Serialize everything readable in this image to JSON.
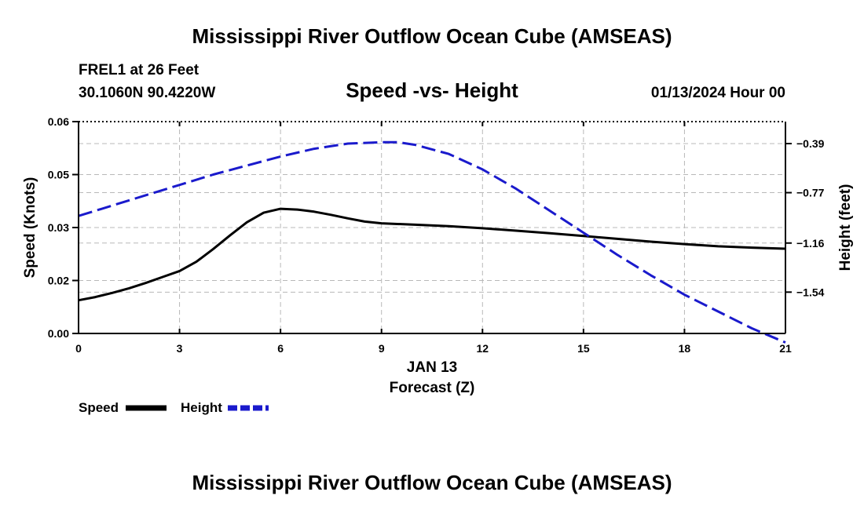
{
  "page": {
    "title": "Mississippi River Outflow Ocean Cube (AMSEAS)",
    "footer_title": "Mississippi River Outflow Ocean Cube (AMSEAS)"
  },
  "header": {
    "station": "FREL1 at 26 Feet",
    "coords": "30.1060N  90.4220W",
    "plot_title": "Speed -vs- Height",
    "datetime": "01/13/2024 Hour 00"
  },
  "chart_data": {
    "type": "line",
    "title": "Speed -vs- Height",
    "xlabel_date": "JAN 13",
    "xlabel": "Forecast (Z)",
    "ylabel": "Speed (Knots)",
    "ylabel_right": "Height (feet)",
    "xlim": [
      0,
      21
    ],
    "ylim": [
      0,
      0.06
    ],
    "ylim_right": [
      -1.86,
      -0.22
    ],
    "grid": true,
    "x_ticks": [
      0,
      3,
      6,
      9,
      12,
      15,
      18,
      21
    ],
    "x_tick_labels": [
      "0",
      "3",
      "6",
      "9",
      "12",
      "15",
      "18",
      "21"
    ],
    "y_ticks": [
      0,
      0.015,
      0.03,
      0.045,
      0.06
    ],
    "y_tick_labels": [
      "0.00",
      "0.02",
      "0.03",
      "0.05",
      "0.06"
    ],
    "y_right_ticks": [
      -0.39,
      -0.77,
      -1.16,
      -1.54
    ],
    "y_right_tick_labels": [
      "−0.39",
      "−0.77",
      "−1.16",
      "−1.54"
    ],
    "series": [
      {
        "name": "Speed",
        "axis": "left",
        "color": "#000000",
        "dash": "solid",
        "x": [
          0,
          0.5,
          1,
          1.5,
          2,
          2.5,
          3,
          3.5,
          4,
          4.5,
          5,
          5.5,
          6,
          6.5,
          7,
          7.5,
          8,
          8.5,
          9,
          10,
          11,
          12,
          13,
          14,
          15,
          16,
          17,
          18,
          19,
          20,
          21
        ],
        "values": [
          0.0094,
          0.0103,
          0.0115,
          0.0128,
          0.0143,
          0.016,
          0.0177,
          0.0203,
          0.0239,
          0.0278,
          0.0315,
          0.0342,
          0.0353,
          0.0351,
          0.0345,
          0.0336,
          0.0326,
          0.0317,
          0.0312,
          0.0308,
          0.0304,
          0.0298,
          0.0291,
          0.0284,
          0.0276,
          0.0268,
          0.026,
          0.0253,
          0.0247,
          0.0243,
          0.024
        ]
      },
      {
        "name": "Height",
        "axis": "right",
        "color": "#1a1acc",
        "dash": "dashed",
        "x": [
          0,
          1,
          2,
          3,
          4,
          5,
          6,
          7,
          8,
          9,
          9.5,
          10,
          11,
          12,
          13,
          14,
          15,
          16,
          17,
          18,
          19,
          20,
          21
        ],
        "values": [
          -0.95,
          -0.87,
          -0.79,
          -0.71,
          -0.63,
          -0.56,
          -0.49,
          -0.43,
          -0.39,
          -0.38,
          -0.38,
          -0.4,
          -0.47,
          -0.59,
          -0.74,
          -0.91,
          -1.08,
          -1.25,
          -1.41,
          -1.56,
          -1.69,
          -1.82,
          -1.93
        ]
      }
    ],
    "legend": [
      {
        "name": "Speed",
        "color": "#000000",
        "dash": "solid"
      },
      {
        "name": "Height",
        "color": "#1a1acc",
        "dash": "dashed"
      }
    ]
  }
}
